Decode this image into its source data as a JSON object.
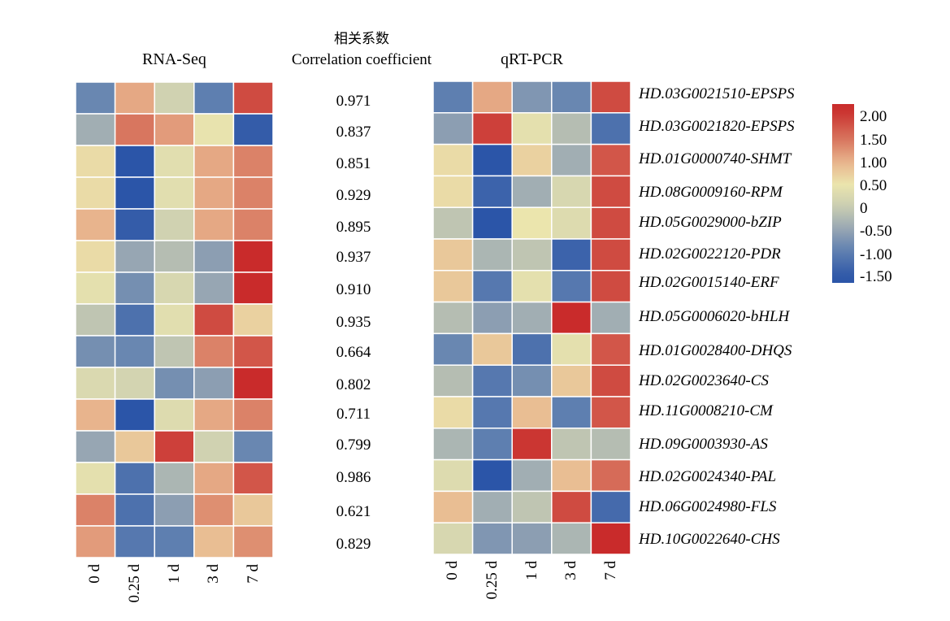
{
  "chart_data": {
    "type": "heatmap",
    "columns": [
      "0 d",
      "0.25 d",
      "1 d",
      "3 d",
      "7 d"
    ],
    "corr_header": {
      "cn": "相关系数",
      "en": "Correlation coefficient"
    },
    "panels": [
      {
        "title": "RNA-Seq",
        "values": [
          [
            -0.9,
            1.1,
            0.1,
            -1.0,
            1.9
          ],
          [
            -0.4,
            1.5,
            1.2,
            0.45,
            -1.5
          ],
          [
            0.6,
            -1.6,
            0.35,
            1.1,
            1.4
          ],
          [
            0.6,
            -1.6,
            0.35,
            1.1,
            1.4
          ],
          [
            1.0,
            -1.5,
            0.1,
            1.1,
            1.4
          ],
          [
            0.6,
            -0.5,
            -0.2,
            -0.6,
            2.2
          ],
          [
            0.4,
            -0.8,
            0.2,
            -0.5,
            2.2
          ],
          [
            -0.1,
            -1.2,
            0.35,
            1.9,
            0.7
          ],
          [
            -0.8,
            -0.9,
            -0.1,
            1.4,
            1.8
          ],
          [
            0.25,
            0.15,
            -0.8,
            -0.6,
            2.2
          ],
          [
            1.0,
            -1.6,
            0.3,
            1.1,
            1.4
          ],
          [
            -0.5,
            0.8,
            2.0,
            0.1,
            -0.9
          ],
          [
            0.4,
            -1.2,
            -0.3,
            1.1,
            1.8
          ],
          [
            1.4,
            -1.2,
            -0.6,
            1.3,
            0.8
          ],
          [
            1.2,
            -1.1,
            -1.0,
            0.9,
            1.3
          ]
        ]
      },
      {
        "title": "qRT-PCR",
        "values": [
          [
            -1.0,
            1.1,
            -0.7,
            -0.9,
            1.9
          ],
          [
            -0.6,
            2.0,
            0.4,
            -0.2,
            -1.2
          ],
          [
            0.6,
            -1.6,
            0.7,
            -0.4,
            1.8
          ],
          [
            0.6,
            -1.4,
            -0.4,
            0.2,
            1.9
          ],
          [
            -0.1,
            -1.6,
            0.5,
            0.3,
            1.9
          ],
          [
            0.8,
            -0.3,
            -0.1,
            -1.4,
            1.9
          ],
          [
            0.8,
            -1.1,
            0.4,
            -1.1,
            1.9
          ],
          [
            -0.2,
            -0.6,
            -0.4,
            2.2,
            -0.4
          ],
          [
            -0.9,
            0.8,
            -1.2,
            0.4,
            1.8
          ],
          [
            -0.2,
            -1.1,
            -0.8,
            0.8,
            1.9
          ],
          [
            0.6,
            -1.1,
            0.9,
            -1.0,
            1.8
          ],
          [
            -0.3,
            -1.0,
            2.1,
            -0.1,
            -0.2
          ],
          [
            0.3,
            -1.6,
            -0.4,
            0.9,
            1.6
          ],
          [
            0.9,
            -0.4,
            -0.1,
            1.9,
            -1.3
          ],
          [
            0.2,
            -0.7,
            -0.6,
            -0.3,
            2.2
          ]
        ]
      }
    ],
    "correlations": [
      "0.971",
      "0.837",
      "0.851",
      "0.929",
      "0.895",
      "0.937",
      "0.910",
      "0.935",
      "0.664",
      "0.802",
      "0.711",
      "0.799",
      "0.986",
      "0.621",
      "0.829"
    ],
    "genes": [
      "HD.03G0021510-EPSPS",
      "HD.03G0021820-EPSPS",
      "HD.01G0000740-SHMT",
      "HD.08G0009160-RPM",
      "HD.05G0029000-bZIP",
      "HD.02G0022120-PDR",
      "HD.02G0015140-ERF",
      "HD.05G0006020-bHLH",
      "HD.01G0028400-DHQS",
      "HD.02G0023640-CS",
      "HD.11G0008210-CM",
      "HD.09G0003930-AS",
      "HD.02G0024340-PAL",
      "HD.06G0024980-FLS",
      "HD.10G0022640-CHS"
    ],
    "legend": {
      "ticks": [
        "2.00",
        "1.50",
        "1.00",
        "0.50",
        "0",
        "-0.50",
        "-1.00",
        "-1.50"
      ],
      "range": [
        -1.7,
        2.3
      ],
      "colors": {
        "low": "#2b55a8",
        "mid": "#ebe5ad",
        "high": "#c92b2b"
      }
    }
  }
}
